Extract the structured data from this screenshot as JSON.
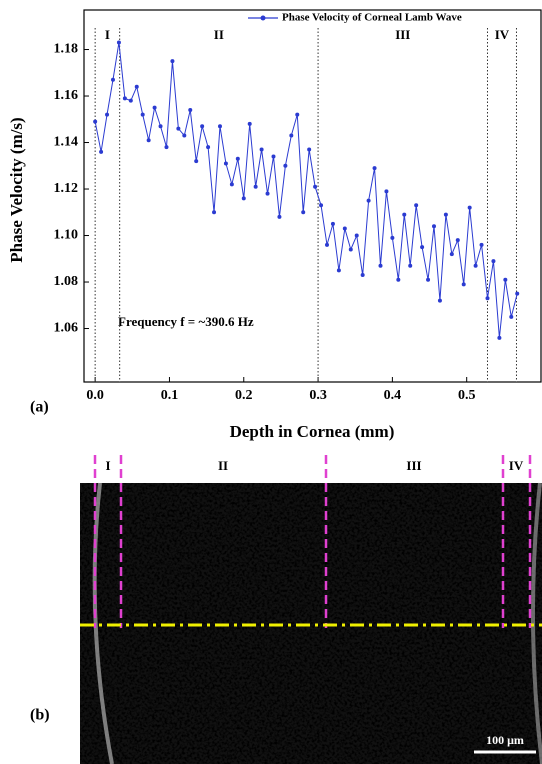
{
  "chart_data": {
    "type": "line",
    "panel_label": "(a)",
    "x_label": "Depth in Cornea (mm)",
    "y_label": "Phase Velocity (m/s)",
    "annotation": "Frequency f = ~390.6 Hz",
    "legend": "top-right",
    "region_labels": [
      "I",
      "II",
      "III",
      "IV"
    ],
    "region_bounds": [
      0,
      0.033,
      0.3,
      0.528,
      0.567
    ],
    "x": [
      0,
      0.008,
      0.016,
      0.024,
      0.032,
      0.04,
      0.048,
      0.056,
      0.064,
      0.072,
      0.08,
      0.088,
      0.096,
      0.104,
      0.112,
      0.12,
      0.128,
      0.136,
      0.144,
      0.152,
      0.16,
      0.168,
      0.176,
      0.184,
      0.192,
      0.2,
      0.208,
      0.216,
      0.224,
      0.232,
      0.24,
      0.248,
      0.256,
      0.264,
      0.272,
      0.28,
      0.288,
      0.296,
      0.304,
      0.312,
      0.32,
      0.328,
      0.336,
      0.344,
      0.352,
      0.36,
      0.368,
      0.376,
      0.384,
      0.392,
      0.4,
      0.408,
      0.416,
      0.424,
      0.432,
      0.44,
      0.448,
      0.456,
      0.464,
      0.472,
      0.48,
      0.488,
      0.496,
      0.504,
      0.512,
      0.52,
      0.528,
      0.536,
      0.544,
      0.552,
      0.56,
      0.568
    ],
    "series": [
      {
        "name": "Phase Velocity of Corneal Lamb Wave",
        "color": "#2b3bd1",
        "values": [
          1.149,
          1.136,
          1.152,
          1.167,
          1.183,
          1.159,
          1.158,
          1.164,
          1.152,
          1.141,
          1.155,
          1.147,
          1.138,
          1.175,
          1.146,
          1.143,
          1.154,
          1.132,
          1.147,
          1.138,
          1.11,
          1.147,
          1.131,
          1.122,
          1.133,
          1.116,
          1.148,
          1.121,
          1.137,
          1.118,
          1.134,
          1.108,
          1.13,
          1.143,
          1.152,
          1.11,
          1.137,
          1.121,
          1.113,
          1.096,
          1.105,
          1.085,
          1.103,
          1.094,
          1.1,
          1.083,
          1.115,
          1.129,
          1.087,
          1.119,
          1.099,
          1.081,
          1.109,
          1.087,
          1.113,
          1.095,
          1.081,
          1.104,
          1.072,
          1.109,
          1.092,
          1.098,
          1.079,
          1.112,
          1.087,
          1.096,
          1.073,
          1.089,
          1.056,
          1.081,
          1.065,
          1.075
        ]
      }
    ],
    "xlim": [
      -0.015,
      0.6
    ],
    "ylim": [
      1.037,
      1.197
    ],
    "xticks": [
      {
        "value": 0,
        "label": "0.0"
      },
      0.1,
      0.2,
      0.3,
      0.4,
      0.5
    ],
    "yticks": [
      1.06,
      1.08,
      {
        "value": 1.1,
        "label": "1.10"
      },
      1.12,
      1.14,
      1.16,
      1.18
    ]
  },
  "image": {
    "panel_label": "(b)",
    "region_labels": [
      "I",
      "II",
      "III",
      "IV"
    ],
    "scale_bar": "100 μm"
  }
}
